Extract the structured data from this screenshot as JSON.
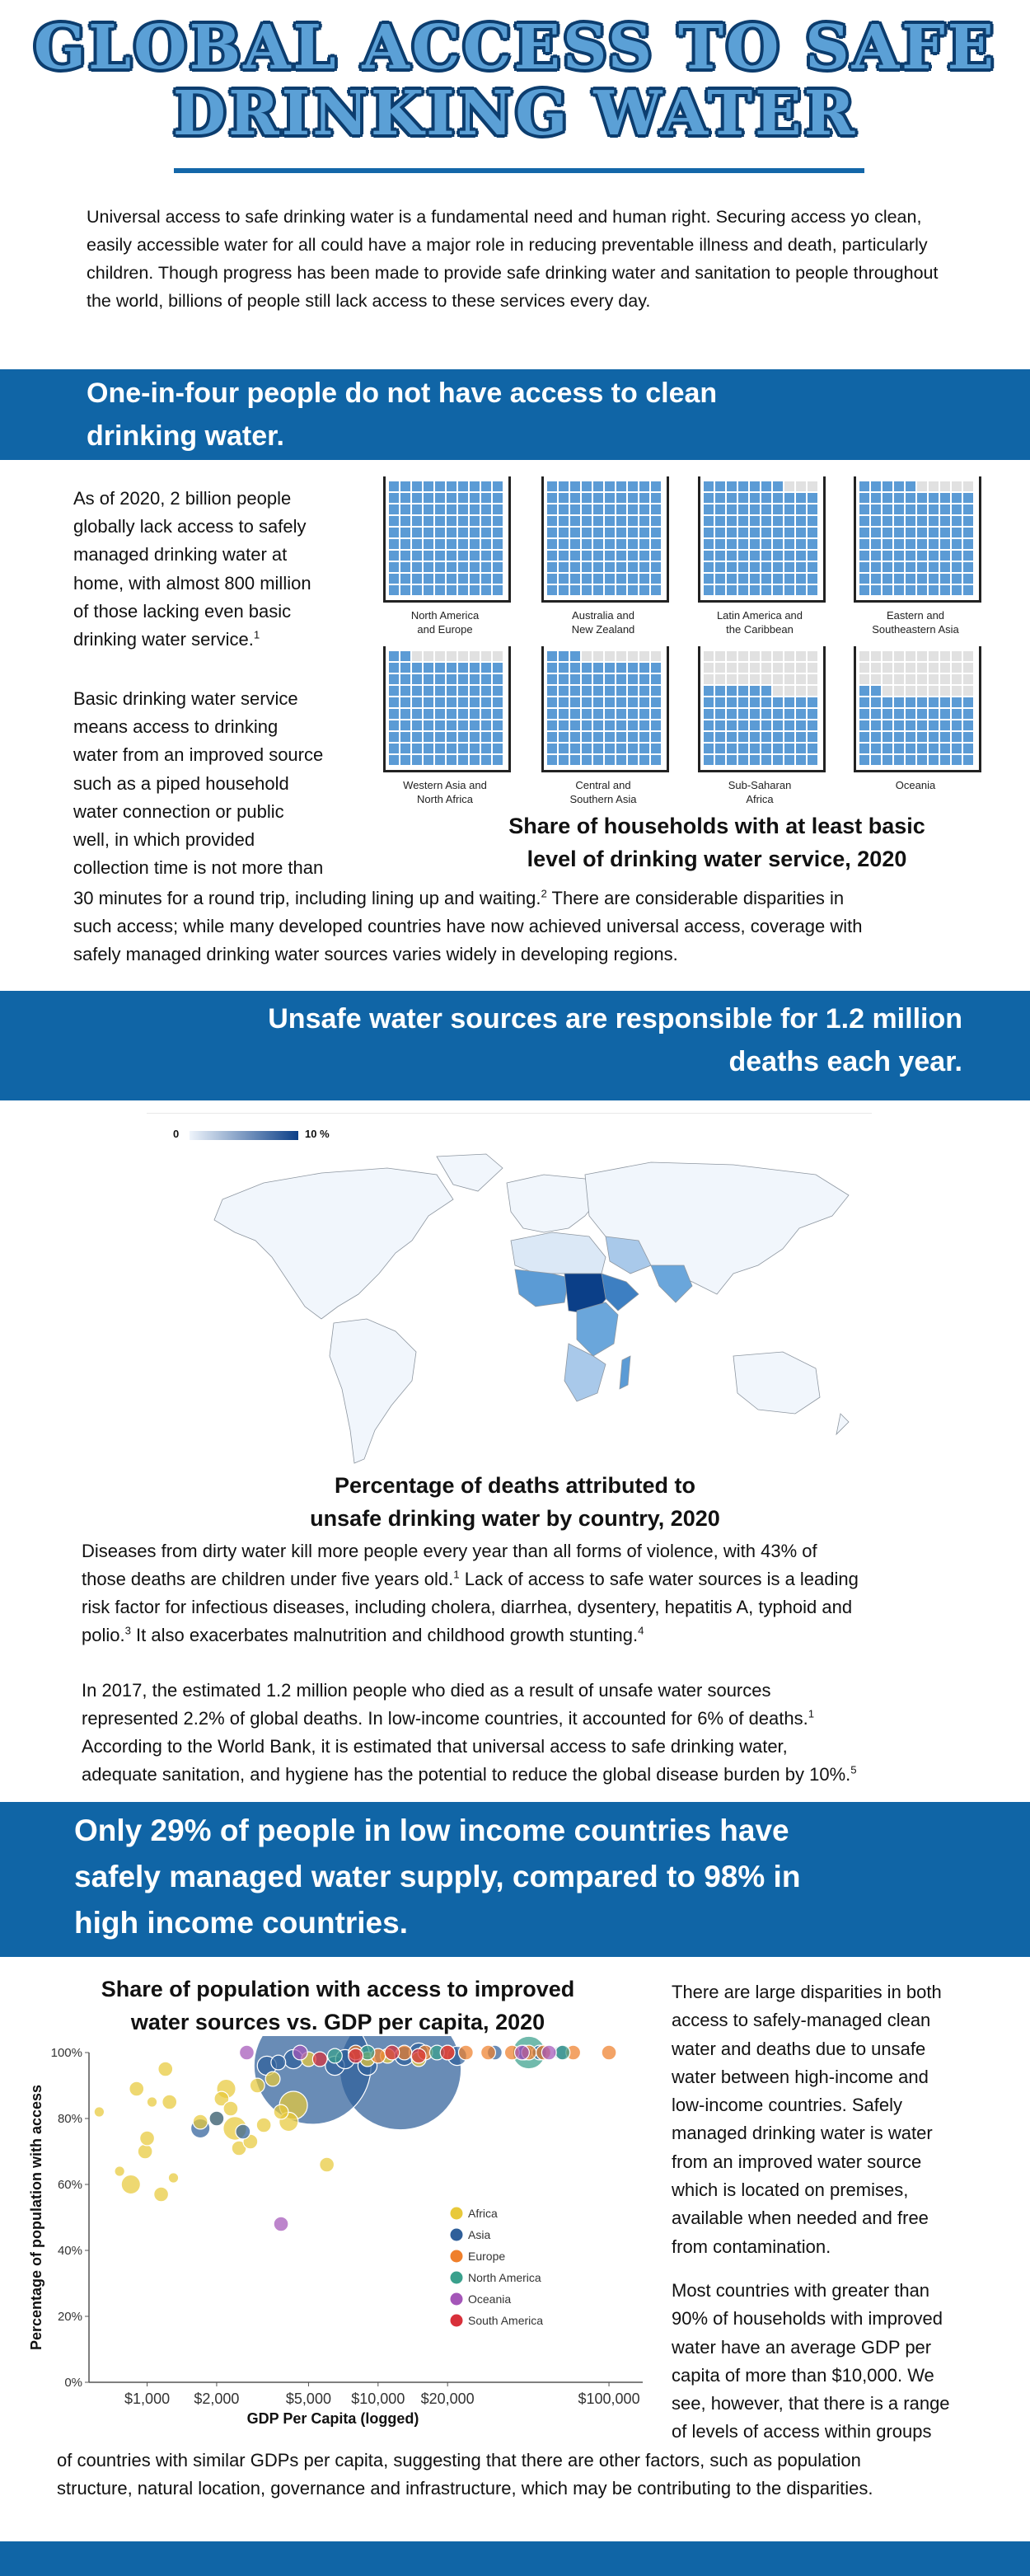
{
  "header": {
    "title_line1": "GLOBAL ACCESS TO SAFE",
    "title_line2": "DRINKING WATER"
  },
  "intro": "Universal access to safe drinking water is a fundamental need and human right. Securing access yo clean, easily accessible water for all could have a major role in reducing preventable illness and death, particularly children. Though progress has been made to provide safe drinking water and sanitation to people throughout the world, billions of people still lack access to these services every day.",
  "section1": {
    "banner_line1": "One-in-four people do not have access to clean",
    "banner_line2": "drinking water.",
    "p1_lines": [
      "As of 2020, 2 billion people",
      "globally lack access to safely",
      "managed drinking water at",
      "home, with almost 800 million",
      "of those lacking even basic",
      "drinking water service."
    ],
    "p1_sup": "1",
    "p2_lines": [
      "Basic drinking water service",
      "means access to drinking",
      "water from an improved source",
      "such as a piped household",
      "water connection or public",
      "well, in which provided",
      "collection time is not more than"
    ],
    "p2_full_line_a": "30 minutes for a round trip, including lining up and waiting.",
    "p2_full_sup": "2",
    "p2_full_line_a2": " There are considerable disparities in",
    "p2_full_line_b": "such access; while many developed countries have now achieved universal access, coverage with",
    "p2_full_line_c": "safely managed drinking water sources varies widely in developing regions.",
    "waffle_caption_line1": "Share of households with at least basic",
    "waffle_caption_line2": "level of drinking water service, 2020",
    "waffle_colors": {
      "filled": "#5b9bd5",
      "empty": "#e1e1e1"
    },
    "regions": [
      {
        "label1": "North America",
        "label2": "and Europe",
        "filled": 100
      },
      {
        "label1": "Australia and",
        "label2": "New Zealand",
        "filled": 100
      },
      {
        "label1": "Latin America and",
        "label2": "the Caribbean",
        "filled": 97
      },
      {
        "label1": "Eastern and",
        "label2": "Southeastern Asia",
        "filled": 95
      },
      {
        "label1": "Western Asia and",
        "label2": "North Africa",
        "filled": 92
      },
      {
        "label1": "Central and",
        "label2": "Southern Asia",
        "filled": 93
      },
      {
        "label1": "Sub-Saharan",
        "label2": "Africa",
        "filled": 66
      },
      {
        "label1": "Oceania",
        "label2": "",
        "filled": 62
      }
    ]
  },
  "section2": {
    "banner_line1": "Unsafe water sources are responsible for 1.2 million",
    "banner_line2": "deaths each year.",
    "map_legend_min": "0",
    "map_legend_max": "10 %",
    "map_colors": {
      "low": "#eef4fb",
      "high": "#0b3f88"
    },
    "map_caption_line1": "Percentage of deaths attributed to",
    "map_caption_line2": "unsafe drinking water by country, 2020",
    "p1_line1": "Diseases from dirty water kill more people every year than all forms of violence, with 43% of",
    "p1_line2a": "those deaths are children under five years old.",
    "p1_sup1": "1",
    "p1_line2b": " Lack of access to safe water sources is a leading",
    "p1_line3": "risk factor for infectious diseases, including cholera, diarrhea, dysentery, hepatitis A, typhoid and",
    "p1_line4a": "polio.",
    "p1_sup2": "3",
    "p1_line4b": " It also exacerbates malnutrition and childhood growth stunting.",
    "p1_sup3": "4",
    "p2_line1": "In 2017, the estimated 1.2 million people who died as a result of unsafe water sources",
    "p2_line2a": "represented 2.2% of global deaths. In low-income countries,  it accounted for 6% of deaths.",
    "p2_sup1": "1",
    "p2_line3": "According to the World Bank, it is estimated that universal access to safe drinking water,",
    "p2_line4a": "adequate sanitation, and hygiene has the potential to reduce the global disease burden by 10%.",
    "p2_sup2": "5"
  },
  "section3": {
    "banner_line1": "Only 29% of people in low income countries have",
    "banner_line2": "safely managed water supply, compared to 98% in",
    "banner_line3": "high income countries.",
    "right_p1_lines": [
      "There are large disparities in both",
      "access to safely-managed clean",
      "water and deaths due to unsafe",
      "water between high-income and",
      "low-income countries. Safely",
      "managed drinking water is water",
      "from an improved water source",
      "which is located on premises,",
      "available when needed and free",
      "from contamination."
    ],
    "right_p2_lines": [
      "Most countries with greater than",
      "90% of households with improved",
      "water have an average GDP per",
      "capita of more than $10,000. We",
      "see, however, that there is a range",
      "of levels of access within groups"
    ],
    "full_line1": "of countries with similar GDPs per capita, suggesting that there are other factors, such as population",
    "full_line2": "structure, natural location, governance and infrastructure, which may be contributing to the disparities."
  },
  "chart_data": {
    "type": "scatter",
    "title": "Share of population with access to improved water sources vs. GDP per capita, 2020",
    "title_line1": "Share of population with access to improved",
    "title_line2": "water sources vs. GDP per capita, 2020",
    "xlabel": "GDP Per Capita (logged)",
    "ylabel": "Percentage of population with access",
    "x_scale": "log",
    "xlim": [
      560,
      140000
    ],
    "ylim": [
      0,
      100
    ],
    "x_ticks": [
      {
        "v": 1000,
        "label": "$1,000"
      },
      {
        "v": 2000,
        "label": "$2,000"
      },
      {
        "v": 5000,
        "label": "$5,000"
      },
      {
        "v": 10000,
        "label": "$10,000"
      },
      {
        "v": 20000,
        "label": "$20,000"
      },
      {
        "v": 100000,
        "label": "$100,000"
      }
    ],
    "y_ticks": [
      {
        "v": 0,
        "label": "0%"
      },
      {
        "v": 20,
        "label": "20%"
      },
      {
        "v": 40,
        "label": "40%"
      },
      {
        "v": 60,
        "label": "60%"
      },
      {
        "v": 80,
        "label": "80%"
      },
      {
        "v": 100,
        "label": "100%"
      }
    ],
    "legend_position": "center-right",
    "series": [
      {
        "name": "Africa",
        "color": "#e8c93a",
        "points": [
          {
            "x": 620,
            "y": 82,
            "s": 1
          },
          {
            "x": 760,
            "y": 64,
            "s": 1
          },
          {
            "x": 850,
            "y": 60,
            "s": 3
          },
          {
            "x": 900,
            "y": 89,
            "s": 2
          },
          {
            "x": 980,
            "y": 70,
            "s": 2
          },
          {
            "x": 1000,
            "y": 74,
            "s": 2
          },
          {
            "x": 1050,
            "y": 85,
            "s": 1
          },
          {
            "x": 1150,
            "y": 57,
            "s": 2
          },
          {
            "x": 1200,
            "y": 95,
            "s": 2
          },
          {
            "x": 1250,
            "y": 85,
            "s": 2
          },
          {
            "x": 1300,
            "y": 62,
            "s": 1
          },
          {
            "x": 1700,
            "y": 79,
            "s": 2
          },
          {
            "x": 2000,
            "y": 80,
            "s": 2
          },
          {
            "x": 2100,
            "y": 86,
            "s": 2
          },
          {
            "x": 2200,
            "y": 89,
            "s": 3
          },
          {
            "x": 2300,
            "y": 83,
            "s": 2
          },
          {
            "x": 2400,
            "y": 77,
            "s": 4
          },
          {
            "x": 2500,
            "y": 71,
            "s": 2
          },
          {
            "x": 2800,
            "y": 73,
            "s": 2
          },
          {
            "x": 3000,
            "y": 90,
            "s": 2
          },
          {
            "x": 3200,
            "y": 78,
            "s": 2
          },
          {
            "x": 3500,
            "y": 92,
            "s": 2
          },
          {
            "x": 3800,
            "y": 82,
            "s": 2
          },
          {
            "x": 4100,
            "y": 79,
            "s": 3
          },
          {
            "x": 4300,
            "y": 84,
            "s": 5
          },
          {
            "x": 5000,
            "y": 98,
            "s": 2
          },
          {
            "x": 6000,
            "y": 66,
            "s": 2
          },
          {
            "x": 9000,
            "y": 98,
            "s": 2
          },
          {
            "x": 11000,
            "y": 99,
            "s": 2
          },
          {
            "x": 15000,
            "y": 98,
            "s": 2
          }
        ]
      },
      {
        "name": "Asia",
        "color": "#2f5f9a",
        "points": [
          {
            "x": 1700,
            "y": 77,
            "s": 3
          },
          {
            "x": 2000,
            "y": 80,
            "s": 2
          },
          {
            "x": 2600,
            "y": 76,
            "s": 2
          },
          {
            "x": 3300,
            "y": 96,
            "s": 3
          },
          {
            "x": 3700,
            "y": 97,
            "s": 2
          },
          {
            "x": 4300,
            "y": 98,
            "s": 3
          },
          {
            "x": 5200,
            "y": 96,
            "s": 25
          },
          {
            "x": 6500,
            "y": 96,
            "s": 3
          },
          {
            "x": 7200,
            "y": 98,
            "s": 3
          },
          {
            "x": 9000,
            "y": 96,
            "s": 3
          },
          {
            "x": 12500,
            "y": 95,
            "s": 26
          },
          {
            "x": 13000,
            "y": 99,
            "s": 3
          },
          {
            "x": 15000,
            "y": 100,
            "s": 3
          },
          {
            "x": 22000,
            "y": 99,
            "s": 3
          },
          {
            "x": 32000,
            "y": 100,
            "s": 2
          },
          {
            "x": 43000,
            "y": 100,
            "s": 2
          },
          {
            "x": 50000,
            "y": 100,
            "s": 2
          },
          {
            "x": 62000,
            "y": 100,
            "s": 2
          }
        ]
      },
      {
        "name": "Europe",
        "color": "#ef7f2b",
        "points": [
          {
            "x": 8000,
            "y": 100,
            "s": 2
          },
          {
            "x": 10000,
            "y": 99,
            "s": 2
          },
          {
            "x": 13000,
            "y": 100,
            "s": 2
          },
          {
            "x": 16000,
            "y": 100,
            "s": 2
          },
          {
            "x": 20000,
            "y": 100,
            "s": 2
          },
          {
            "x": 24000,
            "y": 100,
            "s": 2
          },
          {
            "x": 30000,
            "y": 100,
            "s": 2
          },
          {
            "x": 38000,
            "y": 100,
            "s": 2
          },
          {
            "x": 45000,
            "y": 100,
            "s": 2
          },
          {
            "x": 52000,
            "y": 100,
            "s": 2
          },
          {
            "x": 70000,
            "y": 100,
            "s": 2
          },
          {
            "x": 100000,
            "y": 100,
            "s": 2
          }
        ]
      },
      {
        "name": "North America",
        "color": "#3aa08c",
        "points": [
          {
            "x": 6500,
            "y": 99,
            "s": 2
          },
          {
            "x": 9000,
            "y": 100,
            "s": 2
          },
          {
            "x": 18000,
            "y": 100,
            "s": 2
          },
          {
            "x": 45000,
            "y": 100,
            "s": 6
          },
          {
            "x": 63000,
            "y": 100,
            "s": 2
          }
        ]
      },
      {
        "name": "Oceania",
        "color": "#a456b8",
        "points": [
          {
            "x": 2700,
            "y": 100,
            "s": 2
          },
          {
            "x": 3800,
            "y": 48,
            "s": 2
          },
          {
            "x": 4600,
            "y": 100,
            "s": 2
          },
          {
            "x": 42000,
            "y": 100,
            "s": 2
          },
          {
            "x": 55000,
            "y": 100,
            "s": 2
          }
        ]
      },
      {
        "name": "South America",
        "color": "#d8303a",
        "points": [
          {
            "x": 5600,
            "y": 98,
            "s": 2
          },
          {
            "x": 8000,
            "y": 99,
            "s": 2
          },
          {
            "x": 11500,
            "y": 100,
            "s": 2
          },
          {
            "x": 15000,
            "y": 99,
            "s": 2
          },
          {
            "x": 20000,
            "y": 100,
            "s": 2
          }
        ]
      }
    ]
  }
}
